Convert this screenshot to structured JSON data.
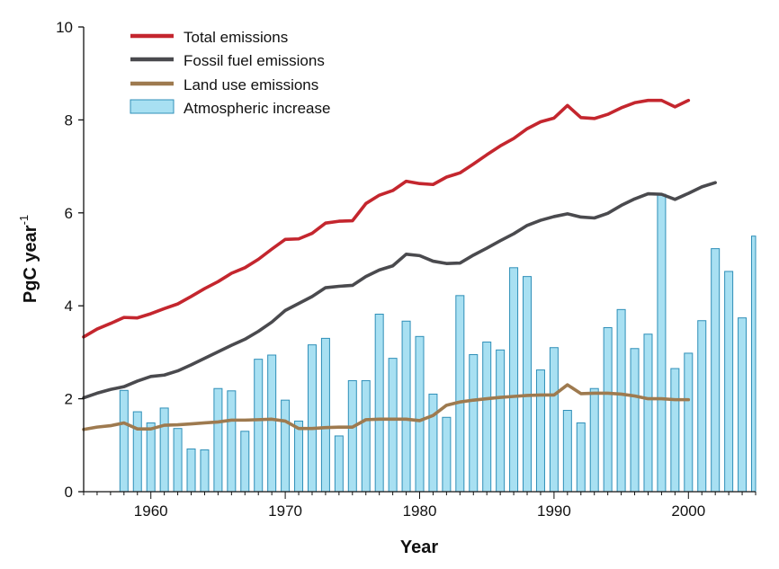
{
  "chart_data": {
    "type": "bar+line",
    "title": "",
    "xlabel": "Year",
    "ylabel": "PgC year",
    "ylabel_sup": "-1",
    "xlim": [
      1955,
      2005
    ],
    "ylim": [
      0,
      10
    ],
    "xticks": [
      1960,
      1970,
      1980,
      1990,
      2000
    ],
    "yticks": [
      0,
      2,
      4,
      6,
      8,
      10
    ],
    "legend_position": "top-left",
    "legend": [
      {
        "name": "Total emissions",
        "kind": "line",
        "color": "#c4262e"
      },
      {
        "name": "Fossil fuel emissions",
        "kind": "line",
        "color": "#4a4a4e"
      },
      {
        "name": "Land use emissions",
        "kind": "line",
        "color": "#9e7a4f"
      },
      {
        "name": "Atmospheric increase",
        "kind": "bar",
        "color": "#a8e0f2",
        "edge": "#2f8fb8"
      }
    ],
    "bars": {
      "name": "Atmospheric increase",
      "x": [
        1958,
        1959,
        1960,
        1961,
        1962,
        1963,
        1964,
        1965,
        1966,
        1967,
        1968,
        1969,
        1970,
        1971,
        1972,
        1973,
        1974,
        1975,
        1976,
        1977,
        1978,
        1979,
        1980,
        1981,
        1982,
        1983,
        1984,
        1985,
        1986,
        1987,
        1988,
        1989,
        1990,
        1991,
        1992,
        1993,
        1994,
        1995,
        1996,
        1997,
        1998,
        1999,
        2000,
        2001,
        2002,
        2003,
        2004,
        2005
      ],
      "values": [
        2.18,
        1.72,
        1.48,
        1.8,
        1.36,
        0.92,
        0.9,
        2.22,
        2.17,
        1.3,
        2.85,
        2.94,
        1.97,
        1.52,
        3.16,
        3.3,
        1.2,
        2.39,
        2.39,
        3.82,
        2.87,
        3.67,
        3.34,
        2.1,
        1.6,
        4.22,
        2.95,
        3.22,
        3.05,
        4.82,
        4.63,
        2.62,
        3.1,
        1.75,
        1.48,
        2.22,
        3.53,
        3.92,
        3.08,
        3.39,
        6.4,
        2.65,
        2.98,
        3.68,
        5.23,
        4.74,
        3.74,
        5.5
      ]
    },
    "series": [
      {
        "name": "Total emissions",
        "x": [
          1955,
          1956,
          1957,
          1958,
          1959,
          1960,
          1961,
          1962,
          1963,
          1964,
          1965,
          1966,
          1967,
          1968,
          1969,
          1970,
          1971,
          1972,
          1973,
          1974,
          1975,
          1976,
          1977,
          1978,
          1979,
          1980,
          1981,
          1982,
          1983,
          1984,
          1985,
          1986,
          1987,
          1988,
          1989,
          1990,
          1991,
          1992,
          1993,
          1994,
          1995,
          1996,
          1997,
          1998,
          1999,
          2000
        ],
        "values": [
          3.33,
          3.5,
          3.62,
          3.75,
          3.74,
          3.83,
          3.94,
          4.04,
          4.2,
          4.37,
          4.52,
          4.7,
          4.82,
          5.0,
          5.22,
          5.43,
          5.44,
          5.56,
          5.78,
          5.82,
          5.83,
          6.2,
          6.38,
          6.48,
          6.68,
          6.63,
          6.61,
          6.77,
          6.86,
          7.05,
          7.25,
          7.44,
          7.6,
          7.81,
          7.96,
          8.04,
          8.31,
          8.05,
          8.03,
          8.12,
          8.26,
          8.37,
          8.42,
          8.42,
          8.28,
          8.42
        ]
      },
      {
        "name": "Fossil fuel emissions",
        "x": [
          1955,
          1956,
          1957,
          1958,
          1959,
          1960,
          1961,
          1962,
          1963,
          1964,
          1965,
          1966,
          1967,
          1968,
          1969,
          1970,
          1971,
          1972,
          1973,
          1974,
          1975,
          1976,
          1977,
          1978,
          1979,
          1980,
          1981,
          1982,
          1983,
          1984,
          1985,
          1986,
          1987,
          1988,
          1989,
          1990,
          1991,
          1992,
          1993,
          1994,
          1995,
          1996,
          1997,
          1998,
          1999,
          2000,
          2001,
          2002
        ],
        "values": [
          2.02,
          2.12,
          2.2,
          2.26,
          2.38,
          2.48,
          2.51,
          2.6,
          2.73,
          2.87,
          3.01,
          3.15,
          3.28,
          3.45,
          3.65,
          3.9,
          4.05,
          4.2,
          4.39,
          4.42,
          4.44,
          4.63,
          4.77,
          4.86,
          5.11,
          5.08,
          4.96,
          4.91,
          4.92,
          5.09,
          5.24,
          5.4,
          5.55,
          5.73,
          5.84,
          5.92,
          5.98,
          5.91,
          5.89,
          5.99,
          6.16,
          6.3,
          6.41,
          6.4,
          6.29,
          6.42,
          6.56,
          6.65
        ]
      },
      {
        "name": "Land use emissions",
        "x": [
          1955,
          1956,
          1957,
          1958,
          1959,
          1960,
          1961,
          1962,
          1963,
          1964,
          1965,
          1966,
          1967,
          1968,
          1969,
          1970,
          1971,
          1972,
          1973,
          1974,
          1975,
          1976,
          1977,
          1978,
          1979,
          1980,
          1981,
          1982,
          1983,
          1984,
          1985,
          1986,
          1987,
          1988,
          1989,
          1990,
          1991,
          1992,
          1993,
          1994,
          1995,
          1996,
          1997,
          1998,
          1999,
          2000
        ],
        "values": [
          1.34,
          1.39,
          1.42,
          1.48,
          1.35,
          1.35,
          1.43,
          1.44,
          1.46,
          1.48,
          1.5,
          1.54,
          1.54,
          1.55,
          1.56,
          1.52,
          1.36,
          1.36,
          1.38,
          1.39,
          1.39,
          1.55,
          1.56,
          1.56,
          1.56,
          1.53,
          1.64,
          1.86,
          1.93,
          1.97,
          2.0,
          2.03,
          2.05,
          2.07,
          2.08,
          2.08,
          2.3,
          2.11,
          2.12,
          2.12,
          2.1,
          2.06,
          2.0,
          2.0,
          1.98,
          1.98
        ]
      }
    ]
  }
}
